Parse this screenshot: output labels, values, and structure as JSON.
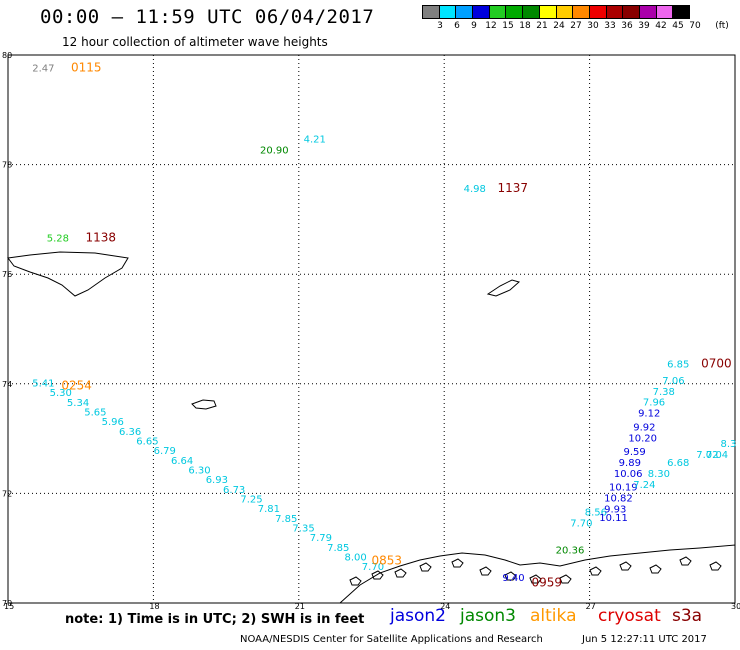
{
  "header": {
    "title": "00:00 – 11:59 UTC 06/04/2017",
    "subtitle": "12 hour collection of altimeter wave heights"
  },
  "colorbar": {
    "colors": [
      "#808080",
      "#00e5ff",
      "#00a0ff",
      "#0000dd",
      "#22cc22",
      "#00aa00",
      "#008800",
      "#ffff00",
      "#ffcc00",
      "#ff8800",
      "#ee0000",
      "#aa0000",
      "#880000",
      "#aa00aa",
      "#ee66ee",
      "#000000"
    ],
    "labels": [
      "3",
      "6",
      "9",
      "12",
      "15",
      "18",
      "21",
      "24",
      "27",
      "30",
      "33",
      "36",
      "39",
      "42",
      "45",
      "70"
    ],
    "unit": "(ft)"
  },
  "axes": {
    "lat_labels": [
      "80",
      "78",
      "76",
      "74",
      "72",
      "70"
    ],
    "lon_labels": [
      "15",
      "18",
      "21",
      "24",
      "27",
      "30"
    ]
  },
  "annotations": [
    {
      "text": "2.47",
      "color": "#808080",
      "lon": 15.5,
      "lat": 79.7
    },
    {
      "text": "0115",
      "color": "#ff8800",
      "lon": 16.3,
      "lat": 79.7
    },
    {
      "text": "4.98",
      "color": "#00c8e0",
      "lon": 24.4,
      "lat": 77.5
    },
    {
      "text": "1137",
      "color": "#880000",
      "lon": 25.1,
      "lat": 77.5
    },
    {
      "text": "4.21",
      "color": "#00c8e0",
      "lon": 21.1,
      "lat": 78.4
    },
    {
      "text": "20.90",
      "color": "#008800",
      "lon": 20.2,
      "lat": 78.2
    },
    {
      "text": "5.28",
      "color": "#22cc22",
      "lon": 15.8,
      "lat": 76.6
    },
    {
      "text": "1138",
      "color": "#880000",
      "lon": 16.6,
      "lat": 76.6
    },
    {
      "text": "0254",
      "color": "#ff8800",
      "lon": 16.1,
      "lat": 73.9
    },
    {
      "text": "0853",
      "color": "#ff8800",
      "lon": 22.5,
      "lat": 70.7
    },
    {
      "text": "20.36",
      "color": "#008800",
      "lon": 26.3,
      "lat": 70.9
    },
    {
      "text": "7.70",
      "color": "#00c8e0",
      "lon": 26.6,
      "lat": 71.4
    },
    {
      "text": "8.56",
      "color": "#00c8e0",
      "lon": 26.9,
      "lat": 71.6
    },
    {
      "text": "10.11",
      "color": "#0000dd",
      "lon": 27.2,
      "lat": 71.5
    },
    {
      "text": "9.40",
      "color": "#0000dd",
      "lon": 25.2,
      "lat": 70.4
    },
    {
      "text": "0959",
      "color": "#880000",
      "lon": 25.8,
      "lat": 70.3
    },
    {
      "text": "6.85",
      "color": "#00c8e0",
      "lon": 28.6,
      "lat": 74.3
    },
    {
      "text": "0700",
      "color": "#880000",
      "lon": 29.3,
      "lat": 74.3
    },
    {
      "text": "7.06",
      "color": "#00c8e0",
      "lon": 28.5,
      "lat": 74.0
    },
    {
      "text": "7.38",
      "color": "#00c8e0",
      "lon": 28.3,
      "lat": 73.8
    },
    {
      "text": "7.96",
      "color": "#00c8e0",
      "lon": 28.1,
      "lat": 73.6
    },
    {
      "text": "9.12",
      "color": "#0000dd",
      "lon": 28.0,
      "lat": 73.4
    },
    {
      "text": "9.92",
      "color": "#0000dd",
      "lon": 27.9,
      "lat": 73.15
    },
    {
      "text": "10.20",
      "color": "#0000dd",
      "lon": 27.8,
      "lat": 72.95
    },
    {
      "text": "9.59",
      "color": "#0000dd",
      "lon": 27.7,
      "lat": 72.7
    },
    {
      "text": "9.89",
      "color": "#0000dd",
      "lon": 27.6,
      "lat": 72.5
    },
    {
      "text": "10.06",
      "color": "#0000dd",
      "lon": 27.5,
      "lat": 72.3
    },
    {
      "text": "10.19",
      "color": "#0000dd",
      "lon": 27.4,
      "lat": 72.05
    },
    {
      "text": "10.82",
      "color": "#0000dd",
      "lon": 27.3,
      "lat": 71.85
    },
    {
      "text": "9.93",
      "color": "#0000dd",
      "lon": 27.3,
      "lat": 71.65
    },
    {
      "text": "6.68",
      "color": "#00c8e0",
      "lon": 28.6,
      "lat": 72.5
    },
    {
      "text": "8.30",
      "color": "#00c8e0",
      "lon": 28.2,
      "lat": 72.3
    },
    {
      "text": "7.24",
      "color": "#00c8e0",
      "lon": 27.9,
      "lat": 72.1
    },
    {
      "text": "7.02",
      "color": "#00c8e0",
      "lon": 29.2,
      "lat": 72.65
    },
    {
      "text": "7.04",
      "color": "#00c8e0",
      "lon": 29.4,
      "lat": 72.65
    },
    {
      "text": "8.3",
      "color": "#00c8e0",
      "lon": 29.7,
      "lat": 72.85
    }
  ],
  "track_cyan": [
    "5.41",
    "5.30",
    "5.34",
    "5.65",
    "5.96",
    "6.36",
    "6.65",
    "6.79",
    "6.64",
    "6.30",
    "6.93",
    "6.73",
    "7.25",
    "7.81",
    "7.85",
    "7.35",
    "7.79",
    "7.85",
    "8.00",
    "7.70"
  ],
  "legend": {
    "note": "note: 1) Time is in UTC; 2) SWH is in feet",
    "satellites": [
      {
        "name": "jason2",
        "color": "#0000dd"
      },
      {
        "name": "jason3",
        "color": "#008800"
      },
      {
        "name": "altika",
        "color": "#ff9900"
      },
      {
        "name": "cryosat",
        "color": "#dd0000"
      },
      {
        "name": "s3a",
        "color": "#880000"
      }
    ]
  },
  "footer": {
    "credit": "NOAA/NESDIS Center for Satellite Applications and Research",
    "timestamp": "Jun  5 12:27:11 UTC 2017"
  }
}
